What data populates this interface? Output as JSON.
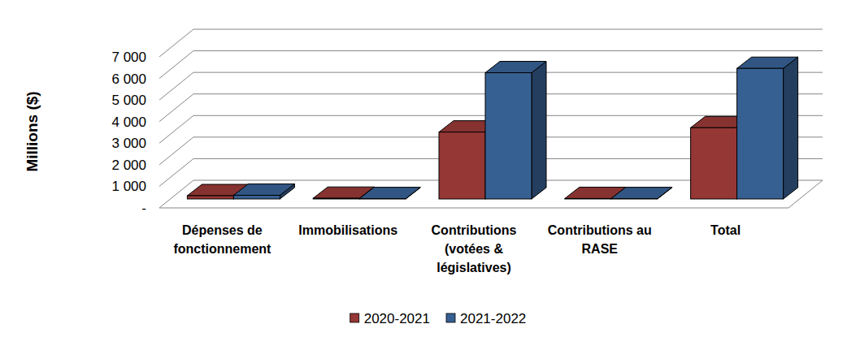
{
  "chart_data": {
    "type": "bar",
    "y_label": "Millions ($)",
    "categories": [
      "Dépenses de fonctionnement",
      "Immobilisations",
      "Contributions (votées & législatives)",
      "Contributions au RASE",
      "Total"
    ],
    "series": [
      {
        "name": "2020-2021",
        "color": "#953735",
        "values": [
          150,
          30,
          3100,
          20,
          3300
        ]
      },
      {
        "name": "2021-2022",
        "color": "#376092",
        "values": [
          170,
          15,
          5850,
          15,
          6050
        ]
      }
    ],
    "ylim": [
      0,
      7000
    ],
    "yticks": [
      {
        "value": 0,
        "label": "-"
      },
      {
        "value": 1000,
        "label": "1 000"
      },
      {
        "value": 2000,
        "label": "2 000"
      },
      {
        "value": 3000,
        "label": "3 000"
      },
      {
        "value": 4000,
        "label": "4 000"
      },
      {
        "value": 5000,
        "label": "5 000"
      },
      {
        "value": 6000,
        "label": "6 000"
      },
      {
        "value": 7000,
        "label": "7 000"
      }
    ],
    "grid": true,
    "legend": "bottom"
  }
}
